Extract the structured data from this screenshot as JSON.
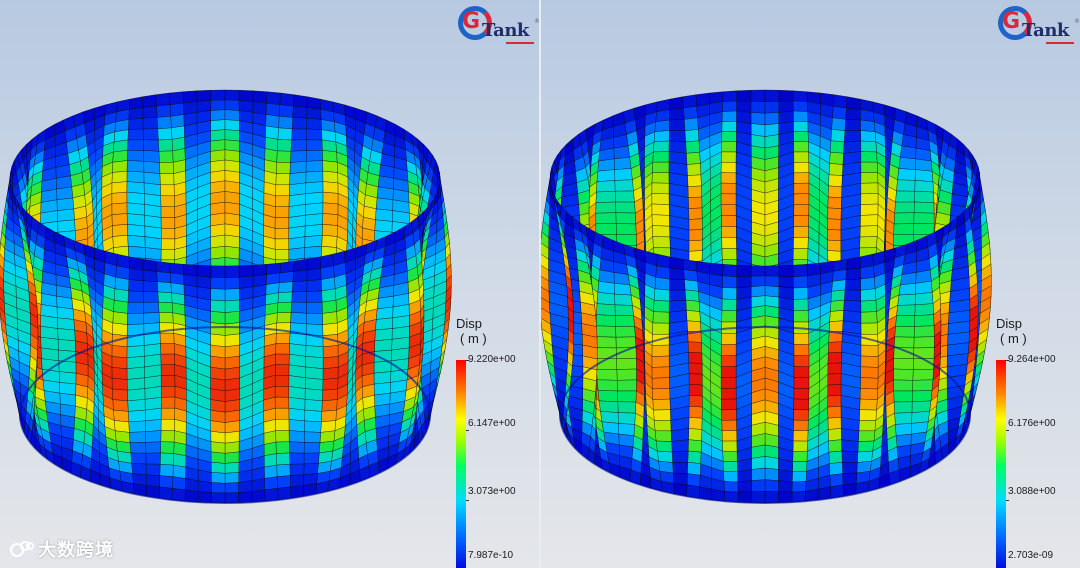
{
  "panels": [
    {
      "logo_text": "Tank",
      "legend": {
        "title": "Disp",
        "unit": "( m )",
        "max_label": "9.220e+00",
        "mid_high_label": "6.147e+00",
        "mid_low_label": "3.073e+00",
        "min_label": "7.987e-10"
      },
      "lobes": 12
    },
    {
      "logo_text": "Tank",
      "legend": {
        "title": "Disp",
        "unit": "( m )",
        "max_label": "9.264e+00",
        "mid_high_label": "6.176e+00",
        "mid_low_label": "3.088e+00",
        "min_label": "2.703e-09"
      },
      "lobes": 18
    }
  ],
  "watermark": "大数跨境",
  "icons": [
    "gtank-logo-icon",
    "watermark-logo-icon"
  ]
}
